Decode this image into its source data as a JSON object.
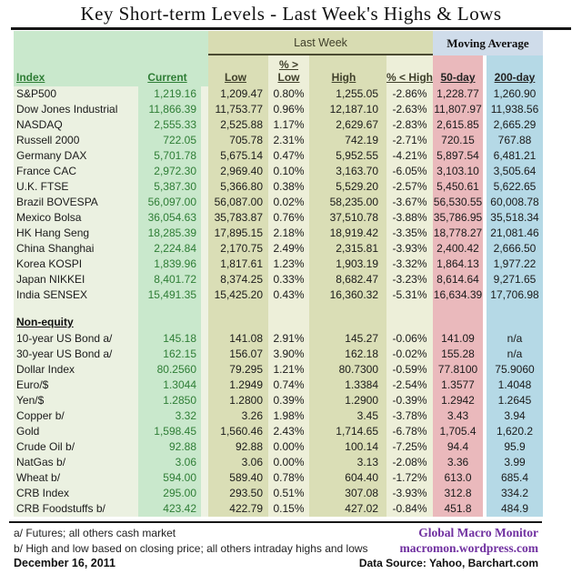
{
  "title": "Key Short-term Levels -  Last Week's Highs & Lows",
  "header": {
    "group_last_week": "Last Week",
    "group_moving_average": "Moving Average",
    "columns": [
      "Index",
      "Current",
      "Low",
      "% > Low",
      "High",
      "% < High",
      "50-day",
      "200-day"
    ]
  },
  "sections": [
    {
      "label": null,
      "rows": [
        {
          "name": "S&P500",
          "current": "1,219.16",
          "low": "1,209.47",
          "pct_above_low": "0.80%",
          "high": "1,255.05",
          "pct_below_high": "-2.86%",
          "ma50": "1,228.77",
          "ma200": "1,260.90"
        },
        {
          "name": "Dow Jones Industrial",
          "current": "11,866.39",
          "low": "11,753.77",
          "pct_above_low": "0.96%",
          "high": "12,187.10",
          "pct_below_high": "-2.63%",
          "ma50": "11,807.97",
          "ma200": "11,938.56"
        },
        {
          "name": "NASDAQ",
          "current": "2,555.33",
          "low": "2,525.88",
          "pct_above_low": "1.17%",
          "high": "2,629.67",
          "pct_below_high": "-2.83%",
          "ma50": "2,615.85",
          "ma200": "2,665.29"
        },
        {
          "name": "Russell 2000",
          "current": "722.05",
          "low": "705.78",
          "pct_above_low": "2.31%",
          "high": "742.19",
          "pct_below_high": "-2.71%",
          "ma50": "720.15",
          "ma200": "767.88"
        },
        {
          "name": "Germany DAX",
          "current": "5,701.78",
          "low": "5,675.14",
          "pct_above_low": "0.47%",
          "high": "5,952.55",
          "pct_below_high": "-4.21%",
          "ma50": "5,897.54",
          "ma200": "6,481.21"
        },
        {
          "name": "France CAC",
          "current": "2,972.30",
          "low": "2,969.40",
          "pct_above_low": "0.10%",
          "high": "3,163.70",
          "pct_below_high": "-6.05%",
          "ma50": "3,103.10",
          "ma200": "3,505.64"
        },
        {
          "name": "U.K. FTSE",
          "current": "5,387.30",
          "low": "5,366.80",
          "pct_above_low": "0.38%",
          "high": "5,529.20",
          "pct_below_high": "-2.57%",
          "ma50": "5,450.61",
          "ma200": "5,622.65"
        },
        {
          "name": "Brazil BOVESPA",
          "current": "56,097.00",
          "low": "56,087.00",
          "pct_above_low": "0.02%",
          "high": "58,235.00",
          "pct_below_high": "-3.67%",
          "ma50": "56,530.55",
          "ma200": "60,008.78"
        },
        {
          "name": "Mexico Bolsa",
          "current": "36,054.63",
          "low": "35,783.87",
          "pct_above_low": "0.76%",
          "high": "37,510.78",
          "pct_below_high": "-3.88%",
          "ma50": "35,786.95",
          "ma200": "35,518.34"
        },
        {
          "name": "HK  Hang Seng",
          "current": "18,285.39",
          "low": "17,895.15",
          "pct_above_low": "2.18%",
          "high": "18,919.42",
          "pct_below_high": "-3.35%",
          "ma50": "18,778.27",
          "ma200": "21,081.46"
        },
        {
          "name": "China Shanghai",
          "current": "2,224.84",
          "low": "2,170.75",
          "pct_above_low": "2.49%",
          "high": "2,315.81",
          "pct_below_high": "-3.93%",
          "ma50": "2,400.42",
          "ma200": "2,666.50"
        },
        {
          "name": "Korea KOSPI",
          "current": "1,839.96",
          "low": "1,817.61",
          "pct_above_low": "1.23%",
          "high": "1,903.19",
          "pct_below_high": "-3.32%",
          "ma50": "1,864.13",
          "ma200": "1,977.22"
        },
        {
          "name": "Japan NIKKEI",
          "current": "8,401.72",
          "low": "8,374.25",
          "pct_above_low": "0.33%",
          "high": "8,682.47",
          "pct_below_high": "-3.23%",
          "ma50": "8,614.64",
          "ma200": "9,271.65"
        },
        {
          "name": "India SENSEX",
          "current": "15,491.35",
          "low": "15,425.20",
          "pct_above_low": "0.43%",
          "high": "16,360.32",
          "pct_below_high": "-5.31%",
          "ma50": "16,634.39",
          "ma200": "17,706.98"
        }
      ]
    },
    {
      "label": "Non-equity",
      "rows": [
        {
          "name": "10-year US Bond  a/",
          "current": "145.18",
          "low": "141.08",
          "pct_above_low": "2.91%",
          "high": "145.27",
          "pct_below_high": "-0.06%",
          "ma50": "141.09",
          "ma200": "n/a"
        },
        {
          "name": "30-year US Bond  a/",
          "current": "162.15",
          "low": "156.07",
          "pct_above_low": "3.90%",
          "high": "162.18",
          "pct_below_high": "-0.02%",
          "ma50": "155.28",
          "ma200": "n/a"
        },
        {
          "name": "Dollar Index",
          "current": "80.2560",
          "low": "79.295",
          "pct_above_low": "1.21%",
          "high": "80.7300",
          "pct_below_high": "-0.59%",
          "ma50": "77.8100",
          "ma200": "75.9060"
        },
        {
          "name": "Euro/$",
          "current": "1.3044",
          "low": "1.2949",
          "pct_above_low": "0.74%",
          "high": "1.3384",
          "pct_below_high": "-2.54%",
          "ma50": "1.3577",
          "ma200": "1.4048"
        },
        {
          "name": "Yen/$",
          "current": "1.2850",
          "low": "1.2800",
          "pct_above_low": "0.39%",
          "high": "1.2900",
          "pct_below_high": "-0.39%",
          "ma50": "1.2942",
          "ma200": "1.2645"
        },
        {
          "name": "Copper  b/",
          "current": "3.32",
          "low": "3.26",
          "pct_above_low": "1.98%",
          "high": "3.45",
          "pct_below_high": "-3.78%",
          "ma50": "3.43",
          "ma200": "3.94"
        },
        {
          "name": "Gold",
          "current": "1,598.45",
          "low": "1,560.46",
          "pct_above_low": "2.43%",
          "high": "1,714.65",
          "pct_below_high": "-6.78%",
          "ma50": "1,705.4",
          "ma200": "1,620.2"
        },
        {
          "name": "Crude Oil  b/",
          "current": "92.88",
          "low": "92.88",
          "pct_above_low": "0.00%",
          "high": "100.14",
          "pct_below_high": "-7.25%",
          "ma50": "94.4",
          "ma200": "95.9"
        },
        {
          "name": "NatGas  b/",
          "current": "3.06",
          "low": "3.06",
          "pct_above_low": "0.00%",
          "high": "3.13",
          "pct_below_high": "-2.08%",
          "ma50": "3.36",
          "ma200": "3.99"
        },
        {
          "name": "Wheat  b/",
          "current": "594.00",
          "low": "589.40",
          "pct_above_low": "0.78%",
          "high": "604.40",
          "pct_below_high": "-1.72%",
          "ma50": "613.0",
          "ma200": "685.4"
        },
        {
          "name": "CRB Index",
          "current": "295.00",
          "low": "293.50",
          "pct_above_low": "0.51%",
          "high": "307.08",
          "pct_below_high": "-3.93%",
          "ma50": "312.8",
          "ma200": "334.2"
        },
        {
          "name": "CRB Foodstuffs  b/",
          "current": "423.42",
          "low": "422.79",
          "pct_above_low": "0.15%",
          "high": "427.02",
          "pct_below_high": "-0.84%",
          "ma50": "451.8",
          "ma200": "484.9"
        }
      ]
    }
  ],
  "footer": {
    "footnote_a": "a/  Futures; all others cash market",
    "footnote_b": "b/  High and low based on closing price;  all others intraday highs and lows",
    "date": "December 16, 2011",
    "brand_line1": "Global Macro Monitor",
    "brand_line2": "macromon.wordpress.com",
    "source": "Data Source: Yahoo, Barchart.com"
  },
  "colors": {
    "mint": "#c9e8cc",
    "pale_green": "#ebf1e1",
    "pale_gap": "#eef2e3",
    "olive": "#d8dcb2",
    "olive_col": "#dadeb6",
    "pale_olive": "#edefd9",
    "pink": "#eab9bc",
    "light_blue": "#b5d9e6",
    "ma_band_blue": "#cfdcea",
    "green_text": "#2e7d35",
    "purple": "#7030a0"
  }
}
